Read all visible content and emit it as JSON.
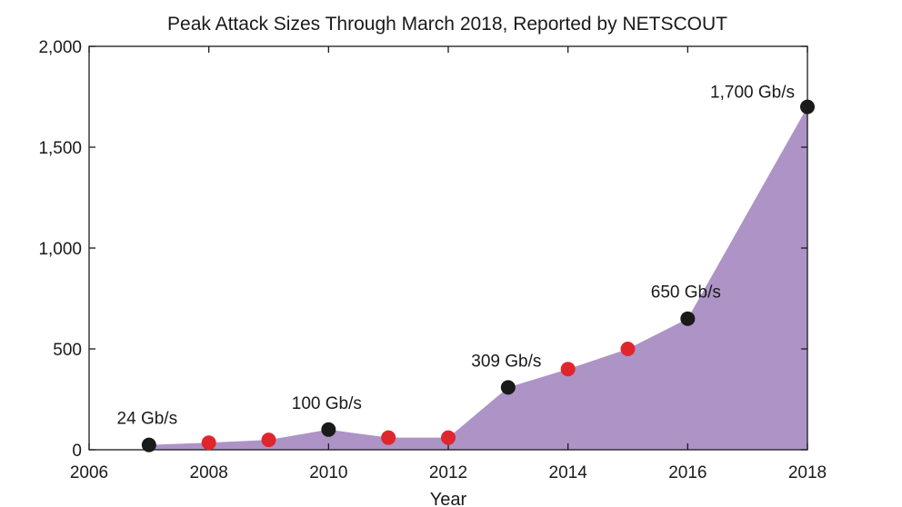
{
  "chart_data": {
    "type": "area",
    "title": "Peak Attack Sizes Through March 2018, Reported by NETSCOUT",
    "xlabel": "Year",
    "ylabel": "",
    "xlim": [
      2006,
      2018
    ],
    "ylim": [
      0,
      2000
    ],
    "x_ticks": [
      "2006",
      "2008",
      "2010",
      "2012",
      "2014",
      "2016",
      "2018"
    ],
    "y_ticks": [
      "0",
      "500",
      "1,000",
      "1,500",
      "2,000"
    ],
    "grid": false,
    "fill_color": "#ad93c6",
    "points": [
      {
        "x": 2007,
        "y": 24,
        "color": "#1a1a1a",
        "label": "24 Gb/s"
      },
      {
        "x": 2008,
        "y": 35,
        "color": "#e0262d",
        "label": ""
      },
      {
        "x": 2009,
        "y": 49,
        "color": "#e0262d",
        "label": ""
      },
      {
        "x": 2010,
        "y": 100,
        "color": "#1a1a1a",
        "label": "100 Gb/s"
      },
      {
        "x": 2011,
        "y": 60,
        "color": "#e0262d",
        "label": ""
      },
      {
        "x": 2012,
        "y": 60,
        "color": "#e0262d",
        "label": ""
      },
      {
        "x": 2013,
        "y": 309,
        "color": "#1a1a1a",
        "label": "309 Gb/s"
      },
      {
        "x": 2014,
        "y": 400,
        "color": "#e0262d",
        "label": ""
      },
      {
        "x": 2015,
        "y": 500,
        "color": "#e0262d",
        "label": ""
      },
      {
        "x": 2016,
        "y": 650,
        "color": "#1a1a1a",
        "label": "650 Gb/s"
      },
      {
        "x": 2018,
        "y": 1700,
        "color": "#1a1a1a",
        "label": "1,700 Gb/s"
      }
    ]
  }
}
